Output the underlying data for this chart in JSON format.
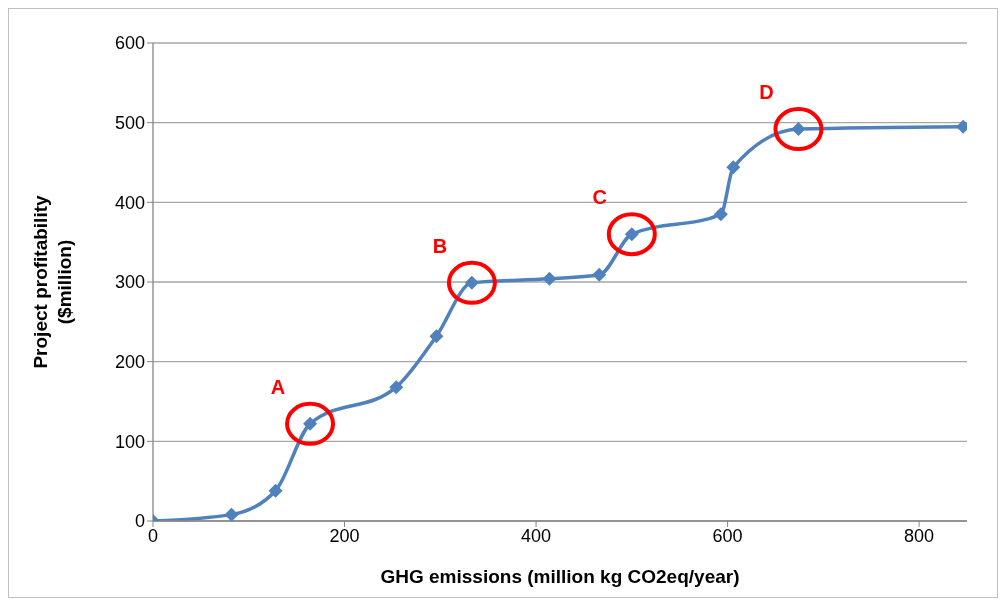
{
  "chart_data": {
    "type": "line",
    "xlabel": "GHG emissions (million kg CO2eq/year)",
    "ylabel": "Project profitability\n($million)",
    "x": [
      0,
      82,
      128,
      164,
      254,
      296,
      333,
      414,
      466,
      500,
      593,
      606,
      674,
      846
    ],
    "series": [
      {
        "color": "#4f81bd",
        "values": [
          0,
          8,
          38,
          122,
          168,
          232,
          299,
          304,
          309,
          360,
          385,
          444,
          492,
          495
        ]
      }
    ],
    "xlim": [
      0,
      850
    ],
    "xticks": [
      0,
      200,
      400,
      600,
      800
    ],
    "ylim": [
      0,
      600
    ],
    "yticks": [
      0,
      100,
      200,
      300,
      400,
      500,
      600
    ],
    "grid": "y",
    "marker": "diamond",
    "line_style": "solid",
    "legend": false,
    "annotations": [
      {
        "text": "A",
        "x": 164,
        "y": 122
      },
      {
        "text": "B",
        "x": 333,
        "y": 299
      },
      {
        "text": "C",
        "x": 500,
        "y": 360
      },
      {
        "text": "D",
        "x": 674,
        "y": 492
      }
    ]
  }
}
